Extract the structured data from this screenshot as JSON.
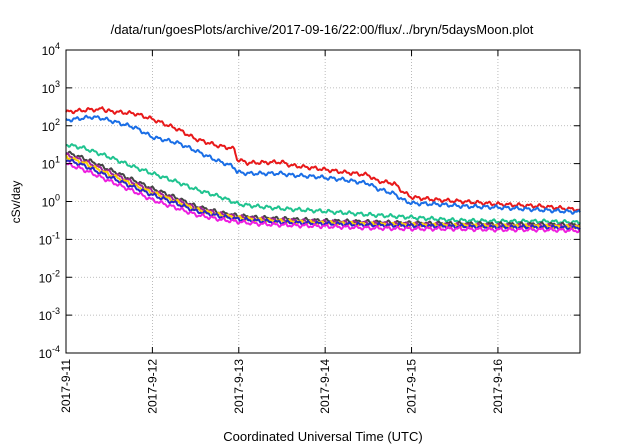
{
  "chart_data": {
    "type": "line",
    "title": "/data/run/goesPlots/archive/2017-09-16/22:00/flux/../bryn/5daysMoon.plot",
    "xlabel": "Coordinated Universal Time (UTC)",
    "ylabel": "cSv/day",
    "y_scale": "log",
    "ylim": [
      0.0001,
      10000
    ],
    "xlim": [
      0,
      5.95
    ],
    "x_unit": "days since 2017-09-11 00:00 UTC",
    "x_ticks": [
      {
        "x": 0,
        "label": "2017-9-11"
      },
      {
        "x": 1,
        "label": "2017-9-12"
      },
      {
        "x": 2,
        "label": "2017-9-13"
      },
      {
        "x": 3,
        "label": "2017-9-14"
      },
      {
        "x": 4,
        "label": "2017-9-15"
      },
      {
        "x": 5,
        "label": "2017-9-16"
      }
    ],
    "y_ticks": [
      {
        "exp": "4"
      },
      {
        "exp": "3"
      },
      {
        "exp": "2"
      },
      {
        "exp": "1"
      },
      {
        "exp": "0"
      },
      {
        "exp": "-1"
      },
      {
        "exp": "-2"
      },
      {
        "exp": "-3"
      },
      {
        "exp": "-4"
      }
    ],
    "y_tick_base": "10",
    "grid": true,
    "series": [
      {
        "color": "#e8191a",
        "x": [
          0,
          0.3,
          0.4,
          0.42,
          0.45,
          0.6,
          0.8,
          1.0,
          1.3,
          1.5,
          1.75,
          1.9,
          1.95,
          1.98,
          2.1,
          2.5,
          2.6,
          2.9,
          3.2,
          3.5,
          3.6,
          3.8,
          3.9,
          4.0,
          4.3,
          4.6,
          5.0,
          5.5,
          5.95
        ],
        "y": [
          230,
          270,
          260,
          330,
          250,
          230,
          210,
          150,
          80,
          45,
          30,
          26,
          24,
          13,
          10.5,
          11,
          9,
          7.5,
          6,
          5,
          3.5,
          3,
          1.8,
          1.3,
          1.1,
          1.0,
          0.85,
          0.75,
          0.6
        ]
      },
      {
        "color": "#1a6ee6",
        "x": [
          0,
          0.3,
          0.4,
          0.45,
          0.6,
          0.8,
          1.0,
          1.3,
          1.5,
          1.75,
          1.9,
          1.95,
          1.98,
          2.1,
          2.5,
          2.6,
          2.9,
          3.2,
          3.5,
          3.6,
          3.8,
          3.9,
          4.0,
          4.3,
          4.6,
          5.0,
          5.5,
          5.95
        ],
        "y": [
          140,
          170,
          160,
          150,
          120,
          90,
          50,
          35,
          22,
          12,
          9,
          8,
          6,
          5.5,
          5.5,
          5,
          4.5,
          3.8,
          3,
          2.2,
          1.6,
          1.1,
          0.9,
          0.85,
          0.75,
          0.7,
          0.6,
          0.52
        ]
      },
      {
        "color": "#1fc38f",
        "x": [
          0,
          0.2,
          0.5,
          0.8,
          1.0,
          1.3,
          1.5,
          1.8,
          2.0,
          2.2,
          2.5,
          3.0,
          3.5,
          4.0,
          4.5,
          5.0,
          5.5,
          5.95
        ],
        "y": [
          32,
          26,
          15,
          8,
          5.5,
          3.2,
          2.1,
          1.3,
          0.85,
          0.75,
          0.65,
          0.55,
          0.45,
          0.38,
          0.32,
          0.3,
          0.3,
          0.28
        ]
      },
      {
        "color": "#444444",
        "x": [
          0,
          0.2,
          0.5,
          0.8,
          1.0,
          1.3,
          1.5,
          1.8,
          2.0,
          2.2,
          2.5,
          3.0,
          3.5,
          4.0,
          4.5,
          5.0,
          5.5,
          5.95
        ],
        "y": [
          20,
          14,
          7,
          3.5,
          2.2,
          1.2,
          0.75,
          0.5,
          0.42,
          0.38,
          0.35,
          0.31,
          0.29,
          0.27,
          0.26,
          0.25,
          0.25,
          0.24
        ]
      },
      {
        "color": "#a0259a",
        "x": [
          0,
          0.2,
          0.5,
          0.8,
          1.0,
          1.3,
          1.5,
          1.8,
          2.0,
          2.2,
          2.5,
          3.0,
          3.5,
          4.0,
          4.5,
          5.0,
          5.5,
          5.95
        ],
        "y": [
          17,
          12,
          6,
          3,
          1.9,
          1.05,
          0.68,
          0.46,
          0.39,
          0.35,
          0.32,
          0.29,
          0.27,
          0.25,
          0.24,
          0.23,
          0.23,
          0.22
        ]
      },
      {
        "color": "#ffd400",
        "x": [
          0,
          0.2,
          0.5,
          0.8,
          1.0,
          1.3,
          1.5,
          1.8,
          2.0,
          2.2,
          2.5,
          3.0,
          3.5,
          4.0,
          4.5,
          5.0,
          5.5,
          5.95
        ],
        "y": [
          15,
          10.5,
          5.2,
          2.6,
          1.7,
          0.95,
          0.62,
          0.43,
          0.37,
          0.33,
          0.3,
          0.27,
          0.25,
          0.24,
          0.23,
          0.22,
          0.22,
          0.21
        ]
      },
      {
        "color": "#2828c8",
        "x": [
          0,
          0.2,
          0.5,
          0.8,
          1.0,
          1.3,
          1.5,
          1.8,
          2.0,
          2.2,
          2.5,
          3.0,
          3.5,
          4.0,
          4.5,
          5.0,
          5.5,
          5.95
        ],
        "y": [
          13,
          9,
          4.5,
          2.3,
          1.5,
          0.85,
          0.56,
          0.4,
          0.34,
          0.31,
          0.28,
          0.26,
          0.24,
          0.23,
          0.22,
          0.21,
          0.21,
          0.2
        ]
      },
      {
        "color": "#ee1ee0",
        "x": [
          0,
          0.2,
          0.5,
          0.8,
          1.0,
          1.3,
          1.5,
          1.8,
          2.0,
          2.2,
          2.5,
          3.0,
          3.5,
          4.0,
          4.5,
          5.0,
          5.5,
          5.95
        ],
        "y": [
          10,
          7,
          3.5,
          1.8,
          1.1,
          0.65,
          0.45,
          0.33,
          0.29,
          0.26,
          0.24,
          0.22,
          0.2,
          0.19,
          0.19,
          0.18,
          0.18,
          0.17
        ]
      }
    ]
  }
}
